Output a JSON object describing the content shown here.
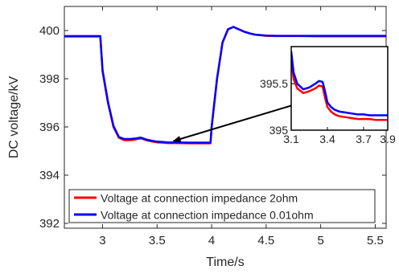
{
  "chart_data": {
    "type": "line",
    "xlabel": "Time/s",
    "ylabel": "DC voltage/kV",
    "xlim": [
      2.65,
      5.6
    ],
    "ylim": [
      391.8,
      401.0
    ],
    "xticks": [
      3,
      3.5,
      4,
      4.5,
      5,
      5.5
    ],
    "xtick_labels": [
      "3",
      "3.5",
      "4",
      "4.5",
      "5",
      "5.5"
    ],
    "yticks": [
      392,
      394,
      396,
      398,
      400
    ],
    "ytick_labels": [
      "392",
      "394",
      "396",
      "398",
      "400"
    ],
    "grid": false,
    "legend_position": "lower-left",
    "series": [
      {
        "name": "Voltage at connection impedance 2ohm",
        "color": "#ff0000",
        "x": [
          2.65,
          2.98,
          3.0,
          3.05,
          3.1,
          3.15,
          3.2,
          3.25,
          3.3,
          3.35,
          3.4,
          3.45,
          3.5,
          3.55,
          3.6,
          3.7,
          3.8,
          3.9,
          3.99,
          4.0,
          4.05,
          4.1,
          4.15,
          4.2,
          4.25,
          4.3,
          4.35,
          4.4,
          4.5,
          4.6,
          4.8,
          5.0,
          5.2,
          5.4,
          5.6
        ],
        "y": [
          399.75,
          399.75,
          398.3,
          397.0,
          396.0,
          395.55,
          395.45,
          395.45,
          395.48,
          395.53,
          395.45,
          395.4,
          395.36,
          395.35,
          395.33,
          395.33,
          395.32,
          395.32,
          395.32,
          396.0,
          398.0,
          399.5,
          400.05,
          400.15,
          400.05,
          399.95,
          399.88,
          399.83,
          399.78,
          399.77,
          399.77,
          399.76,
          399.76,
          399.76,
          399.76
        ]
      },
      {
        "name": "Voltage at connection impedance 0.01ohm",
        "color": "#0000ff",
        "x": [
          2.65,
          2.98,
          3.0,
          3.05,
          3.1,
          3.15,
          3.2,
          3.25,
          3.3,
          3.35,
          3.4,
          3.45,
          3.5,
          3.55,
          3.6,
          3.7,
          3.8,
          3.9,
          3.99,
          4.0,
          4.05,
          4.1,
          4.15,
          4.2,
          4.25,
          4.3,
          4.35,
          4.4,
          4.5,
          4.6,
          4.8,
          5.0,
          5.2,
          5.4,
          5.6
        ],
        "y": [
          399.77,
          399.77,
          398.35,
          397.05,
          396.05,
          395.58,
          395.5,
          395.5,
          395.52,
          395.56,
          395.48,
          395.43,
          395.39,
          395.38,
          395.36,
          395.36,
          395.35,
          395.35,
          395.35,
          396.0,
          398.0,
          399.5,
          400.05,
          400.15,
          400.05,
          399.95,
          399.88,
          399.83,
          399.79,
          399.78,
          399.78,
          399.78,
          399.78,
          399.78,
          399.78
        ]
      }
    ],
    "inset": {
      "xlim": [
        3.1,
        3.9
      ],
      "ylim": [
        395.0,
        395.9
      ],
      "xticks": [
        3.1,
        3.4,
        3.7,
        3.9
      ],
      "xtick_labels": [
        "3.1",
        "3.4",
        "3.7",
        "3.9"
      ],
      "yticks": [
        395,
        395.5
      ],
      "ytick_labels": [
        "395",
        "395.5"
      ],
      "series": [
        {
          "name": "Voltage at connection impedance 2ohm",
          "color": "#ff0000",
          "x": [
            3.1,
            3.12,
            3.15,
            3.2,
            3.25,
            3.3,
            3.33,
            3.36,
            3.38,
            3.4,
            3.43,
            3.46,
            3.5,
            3.55,
            3.6,
            3.65,
            3.7,
            3.75,
            3.8,
            3.85,
            3.9
          ],
          "y": [
            395.75,
            395.55,
            395.45,
            395.4,
            395.42,
            395.45,
            395.48,
            395.47,
            395.35,
            395.25,
            395.2,
            395.17,
            395.15,
            395.14,
            395.13,
            395.12,
            395.12,
            395.12,
            395.11,
            395.11,
            395.11
          ]
        },
        {
          "name": "Voltage at connection impedance 0.01ohm",
          "color": "#0000ff",
          "x": [
            3.1,
            3.12,
            3.15,
            3.2,
            3.25,
            3.3,
            3.33,
            3.36,
            3.38,
            3.4,
            3.43,
            3.46,
            3.5,
            3.55,
            3.6,
            3.65,
            3.7,
            3.75,
            3.8,
            3.85,
            3.9
          ],
          "y": [
            395.85,
            395.62,
            395.5,
            395.44,
            395.46,
            395.5,
            395.53,
            395.52,
            395.42,
            395.3,
            395.25,
            395.22,
            395.2,
            395.19,
            395.18,
            395.17,
            395.17,
            395.16,
            395.16,
            395.16,
            395.16
          ]
        }
      ]
    },
    "annotation": {
      "type": "arrow",
      "from": [
        4.95,
        395.35
      ],
      "to": [
        3.65,
        395.35
      ]
    }
  }
}
